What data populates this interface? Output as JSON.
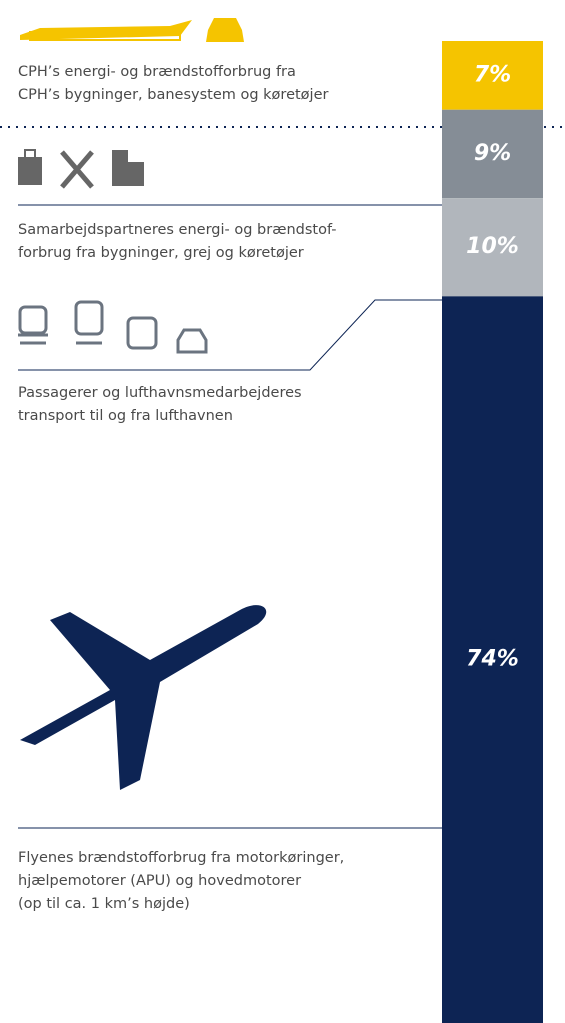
{
  "chart_data": {
    "type": "stacked-bar",
    "categories": [
      [
        "CPH’s energi- og brændstofforbrug fra",
        "CPH’s bygninger, banesystem og køretøjer"
      ],
      [
        "Samarbejdspartneres energi- og brændstof-",
        "forbrug fra bygninger, grej og køretøjer"
      ],
      [
        "Passagerer og lufthavnsmedarbejderes",
        "transport til og fra lufthavnen"
      ],
      [
        "Flyenes brændstofforbrug fra motorkøringer,",
        "hjælpemotorer (APU) og hovedmotorer",
        "(op til ca. 1 km’s højde)"
      ]
    ],
    "values": [
      7,
      9,
      10,
      74
    ],
    "value_labels": [
      "7%",
      "9%",
      "10%",
      "74%"
    ],
    "colors": [
      "#f5c400",
      "#858d96",
      "#b1b6bc",
      "#0d2454"
    ],
    "ylim": [
      0,
      100
    ]
  }
}
